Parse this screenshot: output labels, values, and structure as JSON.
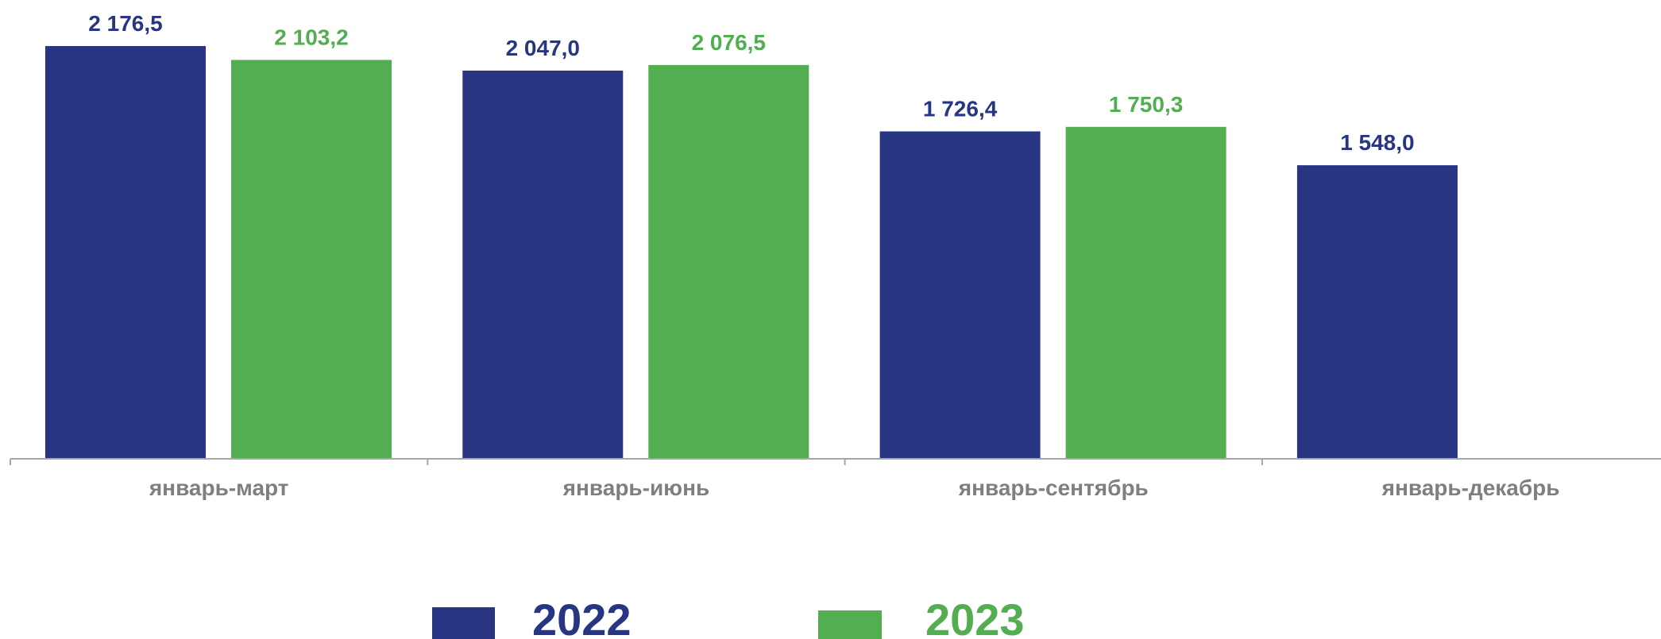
{
  "chart_data": {
    "type": "bar",
    "categories": [
      "январь-март",
      "январь-июнь",
      "январь-сентябрь",
      "январь-декабрь"
    ],
    "series": [
      {
        "name": "2022",
        "color": "#283583",
        "values": [
          2176.5,
          2047.0,
          1726.4,
          1548.0
        ],
        "labels": [
          "2 176,5",
          "2 047,0",
          "1 726,4",
          "1 548,0"
        ]
      },
      {
        "name": "2023",
        "color": "#52ae50",
        "values": [
          2103.2,
          2076.5,
          1750.3,
          null
        ],
        "labels": [
          "2 103,2",
          "2 076,5",
          "1 750,3",
          null
        ]
      }
    ],
    "ylim": [
      0,
      2250
    ],
    "axis_color": "#a6a6a6",
    "category_label_color": "#7f7f7f",
    "grid": false,
    "legend_position": "bottom"
  }
}
